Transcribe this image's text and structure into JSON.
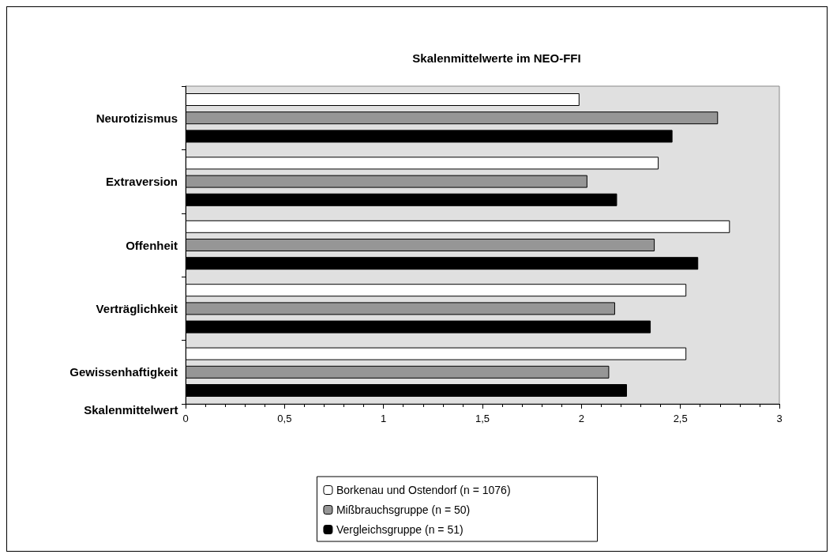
{
  "chart_data": {
    "type": "bar",
    "orientation": "horizontal",
    "title": "Skalenmittelwerte im NEO-FFI",
    "xlabel": "Skalenmittelwert",
    "categories": [
      "Neurotizismus",
      "Extraversion",
      "Offenheit",
      "Verträglichkeit",
      "Gewissenhaftigkeit"
    ],
    "series": [
      {
        "name": "Borkenau und Ostendorf (n = 1076)",
        "color": "#ffffff",
        "values": [
          1.99,
          2.39,
          2.75,
          2.53,
          2.53
        ]
      },
      {
        "name": "Mißbrauchsgruppe (n = 50)",
        "color": "#969696",
        "values": [
          2.69,
          2.03,
          2.37,
          2.17,
          2.14
        ]
      },
      {
        "name": "Vergleichsgruppe (n = 51)",
        "color": "#000000",
        "values": [
          2.46,
          2.18,
          2.59,
          2.35,
          2.23
        ]
      }
    ],
    "xlim": [
      0,
      3
    ],
    "xticks": [
      0,
      {
        "value": 0.5,
        "label": "0,5"
      },
      1,
      {
        "value": 1.5,
        "label": "1,5"
      },
      2,
      {
        "value": 2.5,
        "label": "2,5"
      },
      3
    ],
    "grid": false,
    "legend": "bottom"
  }
}
